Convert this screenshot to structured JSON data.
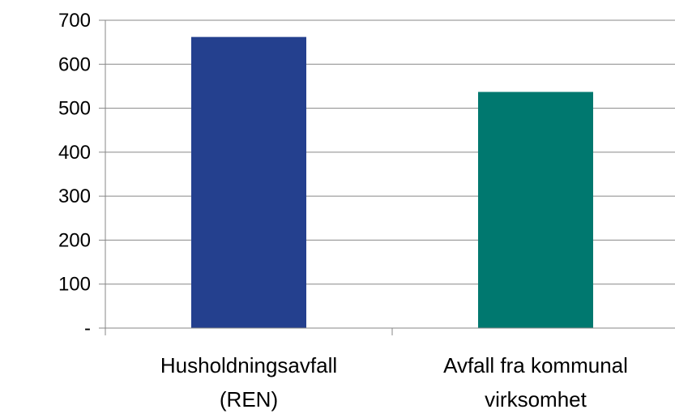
{
  "chart_data": {
    "type": "bar",
    "categories": [
      [
        "Husholdningsavfall",
        "(REN)"
      ],
      [
        "Avfall fra kommunal",
        "virksomhet"
      ]
    ],
    "values": [
      662,
      537
    ],
    "bar_colors": [
      "#24408e",
      "#00786f"
    ],
    "ylim": [
      0,
      700
    ],
    "yticks": [
      {
        "value": 0,
        "label": "-"
      },
      {
        "value": 100,
        "label": "100"
      },
      {
        "value": 200,
        "label": "200"
      },
      {
        "value": 300,
        "label": "300"
      },
      {
        "value": 400,
        "label": "400"
      },
      {
        "value": 500,
        "label": "500"
      },
      {
        "value": 600,
        "label": "600"
      },
      {
        "value": 700,
        "label": "700"
      }
    ],
    "grid": true,
    "legend": "none"
  }
}
